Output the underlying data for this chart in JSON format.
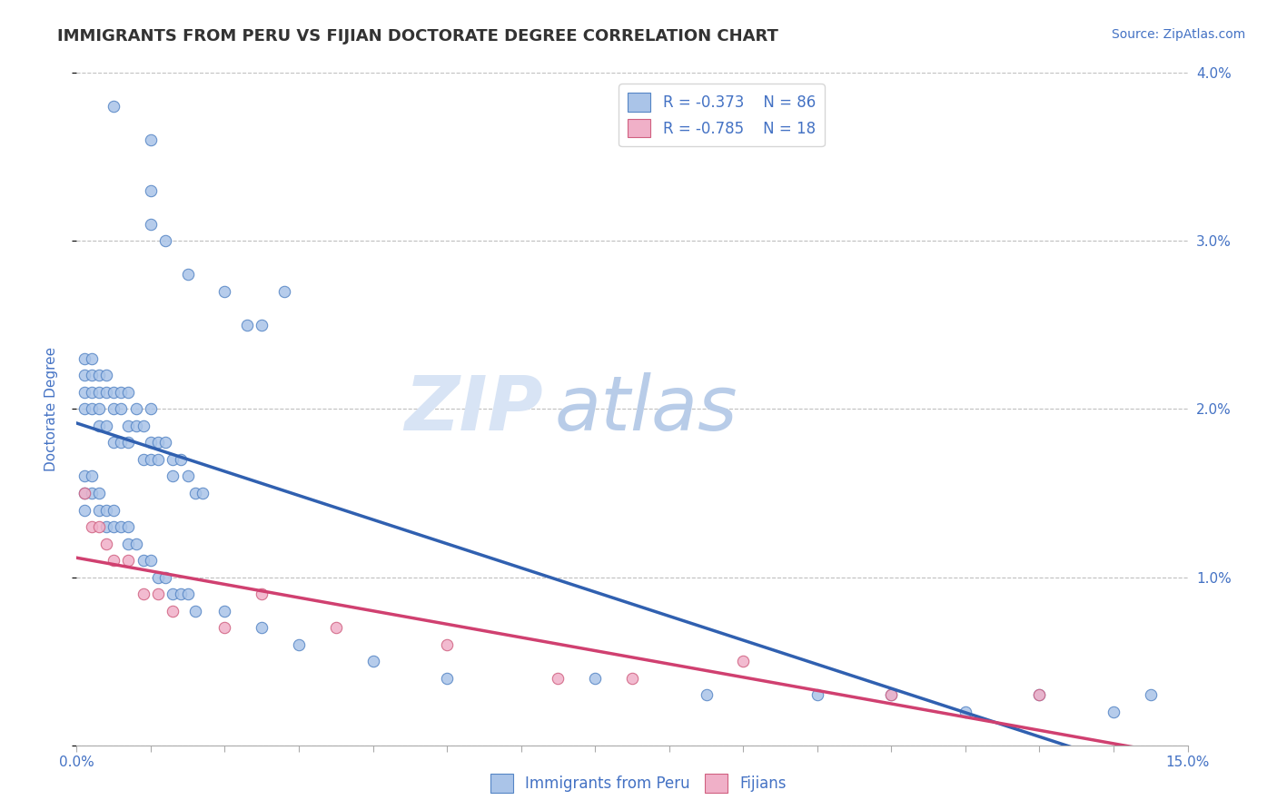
{
  "title": "IMMIGRANTS FROM PERU VS FIJIAN DOCTORATE DEGREE CORRELATION CHART",
  "source": "Source: ZipAtlas.com",
  "ylabel": "Doctorate Degree",
  "xlim": [
    0.0,
    0.15
  ],
  "ylim": [
    0.0,
    0.04
  ],
  "yticks": [
    0.0,
    0.01,
    0.02,
    0.03,
    0.04
  ],
  "ytick_labels": [
    "",
    "1.0%",
    "2.0%",
    "3.0%",
    "4.0%"
  ],
  "xtick_labels": [
    "0.0%",
    "",
    "",
    "",
    "",
    "",
    "",
    "",
    "",
    "",
    "",
    "",
    "",
    "",
    "",
    "15.0%"
  ],
  "legend_blue_r": "R = -0.373",
  "legend_blue_n": "N = 86",
  "legend_pink_r": "R = -0.785",
  "legend_pink_n": "N = 18",
  "legend_blue_label": "Immigrants from Peru",
  "legend_pink_label": "Fijians",
  "blue_color": "#aac4e8",
  "blue_edge_color": "#5585c5",
  "blue_line_color": "#3060b0",
  "pink_color": "#f0b0c8",
  "pink_edge_color": "#d06080",
  "pink_line_color": "#d04070",
  "text_color": "#4472C4",
  "title_color": "#333333",
  "watermark_zip_color": "#d8e4f5",
  "watermark_atlas_color": "#b8cce8",
  "background_color": "#ffffff",
  "grid_color": "#b0b0b0",
  "peru_x": [
    0.005,
    0.01,
    0.01,
    0.01,
    0.012,
    0.015,
    0.02,
    0.023,
    0.025,
    0.028,
    0.001,
    0.001,
    0.001,
    0.001,
    0.002,
    0.002,
    0.002,
    0.002,
    0.003,
    0.003,
    0.003,
    0.003,
    0.004,
    0.004,
    0.004,
    0.005,
    0.005,
    0.005,
    0.006,
    0.006,
    0.006,
    0.007,
    0.007,
    0.007,
    0.008,
    0.008,
    0.009,
    0.009,
    0.01,
    0.01,
    0.01,
    0.011,
    0.011,
    0.012,
    0.013,
    0.013,
    0.014,
    0.015,
    0.016,
    0.017,
    0.001,
    0.001,
    0.001,
    0.002,
    0.002,
    0.003,
    0.003,
    0.004,
    0.004,
    0.005,
    0.005,
    0.006,
    0.007,
    0.007,
    0.008,
    0.009,
    0.01,
    0.011,
    0.012,
    0.013,
    0.014,
    0.015,
    0.016,
    0.02,
    0.025,
    0.03,
    0.04,
    0.05,
    0.07,
    0.085,
    0.1,
    0.11,
    0.12,
    0.13,
    0.14,
    0.145
  ],
  "peru_y": [
    0.038,
    0.036,
    0.033,
    0.031,
    0.03,
    0.028,
    0.027,
    0.025,
    0.025,
    0.027,
    0.022,
    0.02,
    0.021,
    0.023,
    0.022,
    0.02,
    0.021,
    0.023,
    0.022,
    0.02,
    0.021,
    0.019,
    0.022,
    0.021,
    0.019,
    0.021,
    0.02,
    0.018,
    0.021,
    0.02,
    0.018,
    0.021,
    0.019,
    0.018,
    0.02,
    0.019,
    0.019,
    0.017,
    0.02,
    0.018,
    0.017,
    0.018,
    0.017,
    0.018,
    0.017,
    0.016,
    0.017,
    0.016,
    0.015,
    0.015,
    0.016,
    0.015,
    0.014,
    0.016,
    0.015,
    0.015,
    0.014,
    0.014,
    0.013,
    0.014,
    0.013,
    0.013,
    0.013,
    0.012,
    0.012,
    0.011,
    0.011,
    0.01,
    0.01,
    0.009,
    0.009,
    0.009,
    0.008,
    0.008,
    0.007,
    0.006,
    0.005,
    0.004,
    0.004,
    0.003,
    0.003,
    0.003,
    0.002,
    0.003,
    0.002,
    0.003
  ],
  "fijian_x": [
    0.001,
    0.002,
    0.003,
    0.004,
    0.005,
    0.007,
    0.009,
    0.011,
    0.013,
    0.02,
    0.025,
    0.035,
    0.05,
    0.065,
    0.075,
    0.09,
    0.11,
    0.13
  ],
  "fijian_y": [
    0.015,
    0.013,
    0.013,
    0.012,
    0.011,
    0.011,
    0.009,
    0.009,
    0.008,
    0.007,
    0.009,
    0.007,
    0.006,
    0.004,
    0.004,
    0.005,
    0.003,
    0.003
  ]
}
